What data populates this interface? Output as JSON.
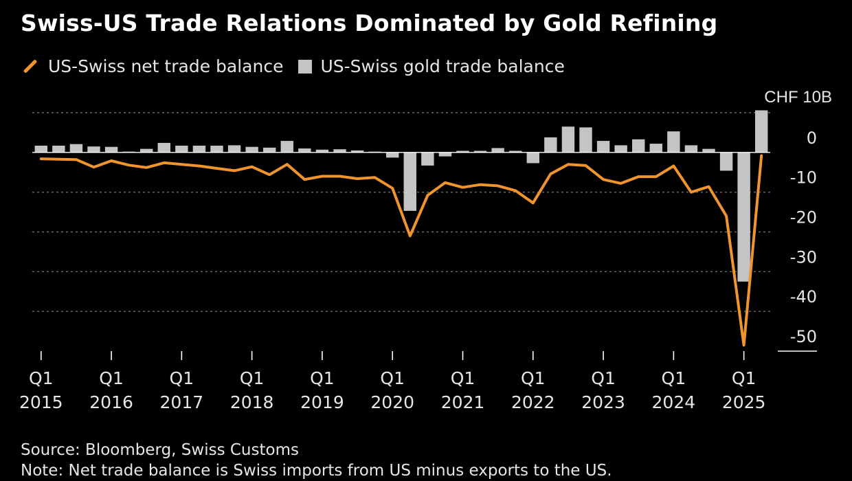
{
  "chart_data": {
    "type": "bar+line",
    "title": "Swiss-US Trade Relations Dominated by Gold Refining",
    "unit_label": "CHF 10B",
    "ylim": [
      -50,
      10
    ],
    "y_ticks": [
      0,
      -10,
      -20,
      -30,
      -40,
      -50
    ],
    "y_tick_labels": [
      "0",
      "-10",
      "-20",
      "-30",
      "-40",
      "-50"
    ],
    "gridlines": "dotted",
    "x_tick_labels": [
      {
        "q": "Q1",
        "year": "2015",
        "index": 0
      },
      {
        "q": "Q1",
        "year": "2016",
        "index": 4
      },
      {
        "q": "Q1",
        "year": "2017",
        "index": 8
      },
      {
        "q": "Q1",
        "year": "2018",
        "index": 12
      },
      {
        "q": "Q1",
        "year": "2019",
        "index": 16
      },
      {
        "q": "Q1",
        "year": "2020",
        "index": 20
      },
      {
        "q": "Q1",
        "year": "2021",
        "index": 24
      },
      {
        "q": "Q1",
        "year": "2022",
        "index": 28
      },
      {
        "q": "Q1",
        "year": "2023",
        "index": 32
      },
      {
        "q": "Q1",
        "year": "2024",
        "index": 36
      },
      {
        "q": "Q1",
        "year": "2025",
        "index": 40
      }
    ],
    "series": [
      {
        "name": "US-Swiss net trade balance",
        "kind": "line",
        "color": "#f0952d",
        "values": [
          -1.6,
          -1.7,
          -1.8,
          -3.7,
          -2.1,
          -3.2,
          -3.8,
          -2.6,
          -3.0,
          -3.4,
          -4.0,
          -4.6,
          -3.6,
          -5.6,
          -3.0,
          -6.8,
          -6.0,
          -6.0,
          -6.6,
          -6.3,
          -9.0,
          -21.0,
          -10.8,
          -7.6,
          -8.8,
          -8.1,
          -8.4,
          -9.6,
          -12.7,
          -5.4,
          -3.0,
          -3.3,
          -6.8,
          -7.8,
          -6.1,
          -6.1,
          -3.4,
          -10.0,
          -8.6,
          -16.0,
          -48.5,
          -0.8
        ]
      },
      {
        "name": "US-Swiss gold trade balance",
        "kind": "bar",
        "color": "#c4c4c4",
        "values": [
          1.7,
          1.7,
          2.1,
          1.5,
          1.4,
          0.2,
          0.9,
          2.4,
          1.7,
          1.7,
          1.7,
          1.8,
          1.4,
          1.2,
          2.9,
          1.0,
          0.7,
          0.8,
          0.5,
          0.2,
          -1.3,
          -14.7,
          -3.3,
          -1.0,
          0.4,
          0.4,
          1.1,
          0.4,
          -2.7,
          3.8,
          6.5,
          6.3,
          2.9,
          1.8,
          3.3,
          2.2,
          5.3,
          1.8,
          0.9,
          -4.6,
          -32.5,
          10.6
        ]
      }
    ]
  },
  "footer": {
    "source": "Source: Bloomberg, Swiss Customs",
    "note": "Note: Net trade balance is Swiss imports from US minus exports to the US."
  }
}
